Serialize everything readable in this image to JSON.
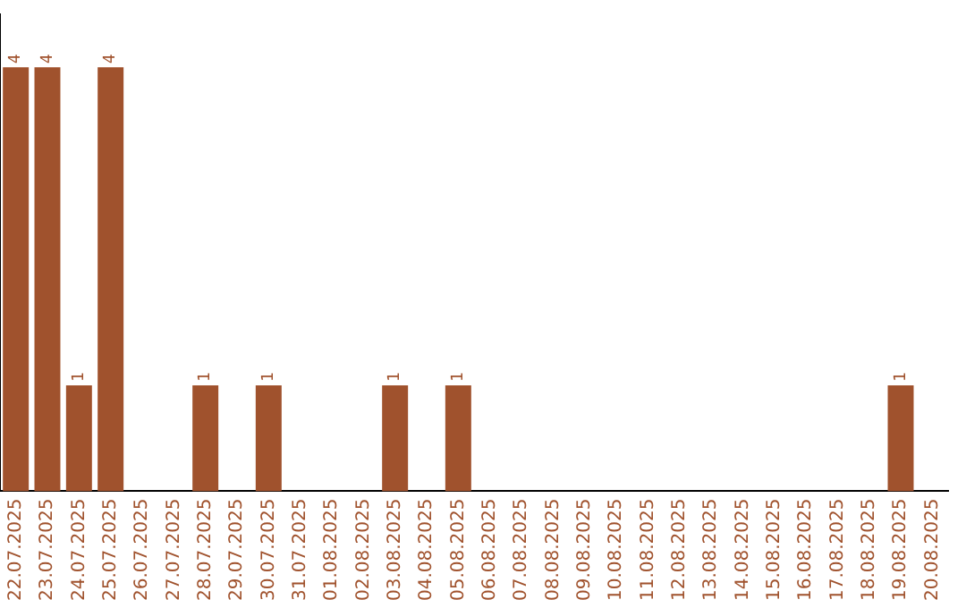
{
  "chart_data": {
    "type": "bar",
    "categories": [
      "22.07.2025",
      "23.07.2025",
      "24.07.2025",
      "25.07.2025",
      "26.07.2025",
      "27.07.2025",
      "28.07.2025",
      "29.07.2025",
      "30.07.2025",
      "31.07.2025",
      "01.08.2025",
      "02.08.2025",
      "03.08.2025",
      "04.08.2025",
      "05.08.2025",
      "06.08.2025",
      "07.08.2025",
      "08.08.2025",
      "09.08.2025",
      "10.08.2025",
      "11.08.2025",
      "12.08.2025",
      "13.08.2025",
      "14.08.2025",
      "15.08.2025",
      "16.08.2025",
      "17.08.2025",
      "18.08.2025",
      "19.08.2025",
      "20.08.2025"
    ],
    "values": [
      4,
      4,
      1,
      4,
      0,
      0,
      1,
      0,
      1,
      0,
      0,
      0,
      1,
      0,
      1,
      0,
      0,
      0,
      0,
      0,
      0,
      0,
      0,
      0,
      0,
      0,
      0,
      0,
      1,
      0
    ],
    "value_labels": [
      "4",
      "4",
      "1",
      "4",
      null,
      null,
      "1",
      null,
      "1",
      null,
      null,
      null,
      "1",
      null,
      "1",
      null,
      null,
      null,
      null,
      null,
      null,
      null,
      null,
      null,
      null,
      null,
      null,
      null,
      "1",
      null
    ],
    "color": "#a0522d",
    "tick_labels": "x",
    "grid": false,
    "legend": false
  }
}
